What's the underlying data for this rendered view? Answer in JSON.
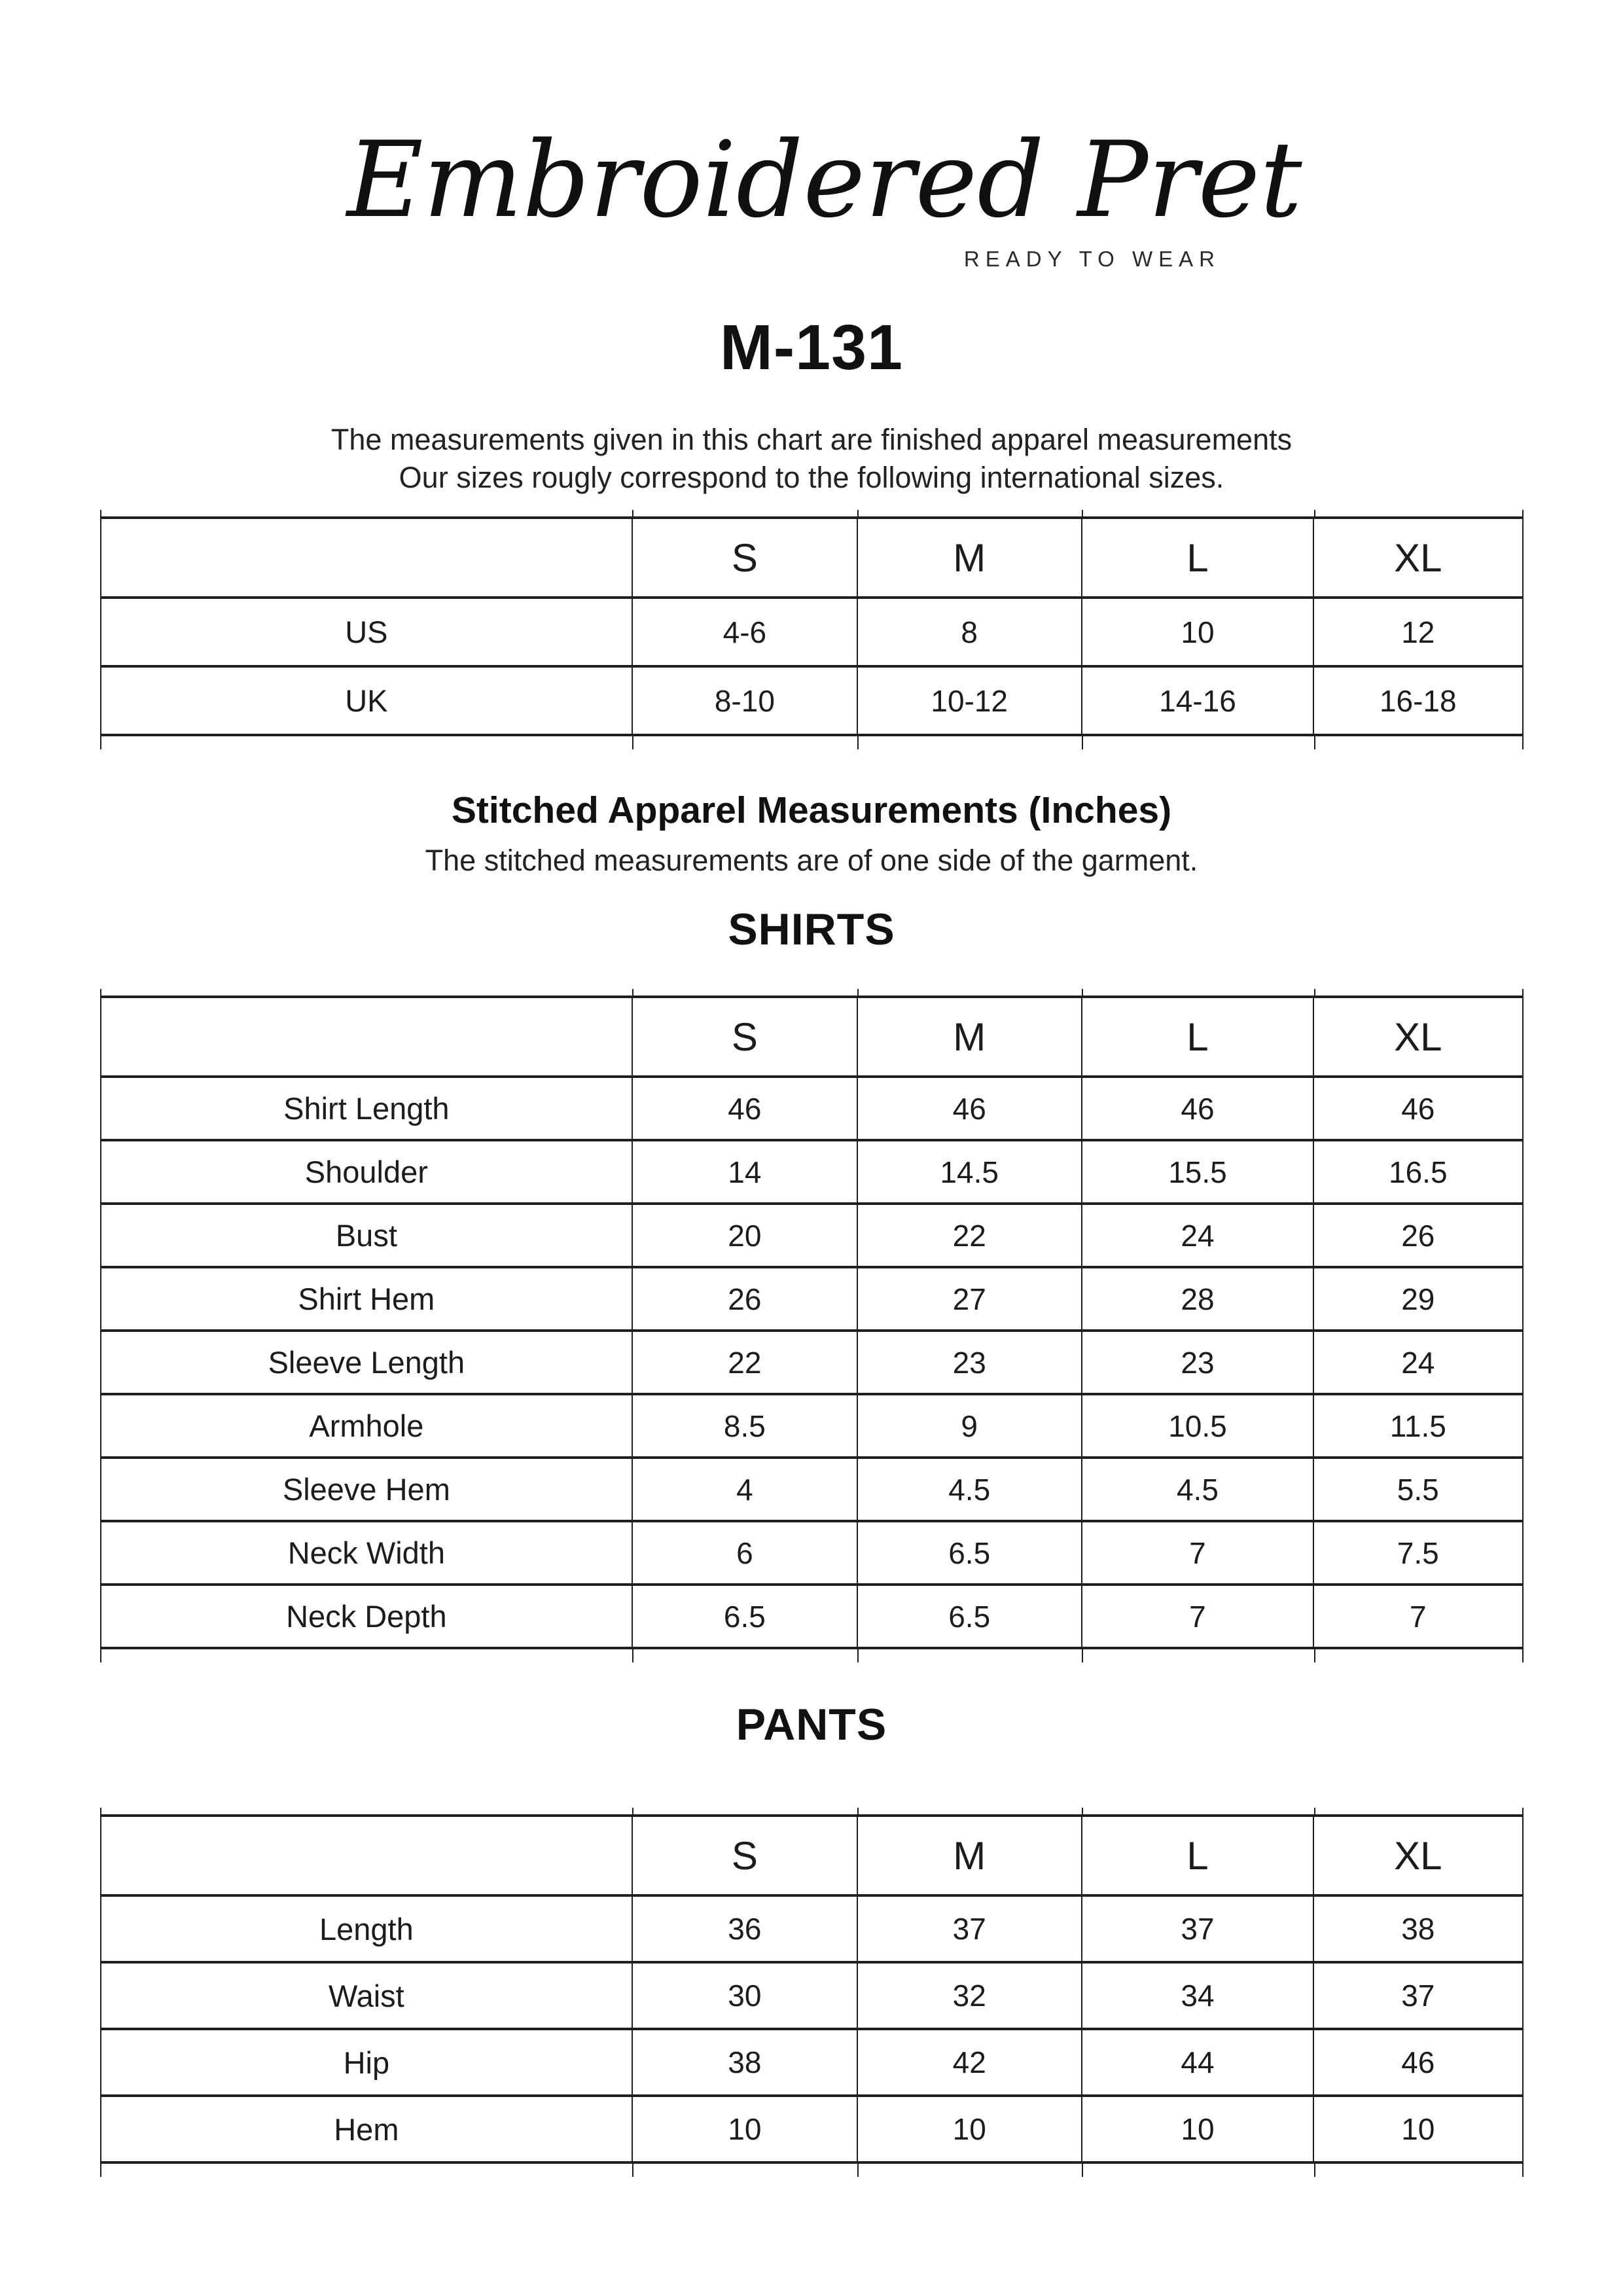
{
  "brand": {
    "wordmark": "Embroidered Pret",
    "tagline": "READY TO WEAR"
  },
  "product": {
    "code": "M-131"
  },
  "intro": {
    "line1": "The measurements given in this chart are finished apparel measurements",
    "line2": "Our sizes rougly correspond to the following international sizes."
  },
  "international": {
    "columns": [
      "S",
      "M",
      "L",
      "XL"
    ],
    "rows": [
      {
        "label": "US",
        "values": [
          "4-6",
          "8",
          "10",
          "12"
        ]
      },
      {
        "label": "UK",
        "values": [
          "8-10",
          "10-12",
          "14-16",
          "16-18"
        ]
      }
    ]
  },
  "stitched": {
    "title": "Stitched Apparel Measurements (Inches)",
    "subtitle": "The stitched measurements are of one side of the garment."
  },
  "shirts": {
    "heading": "SHIRTS",
    "columns": [
      "S",
      "M",
      "L",
      "XL"
    ],
    "rows": [
      {
        "label": "Shirt Length",
        "values": [
          "46",
          "46",
          "46",
          "46"
        ]
      },
      {
        "label": "Shoulder",
        "values": [
          "14",
          "14.5",
          "15.5",
          "16.5"
        ]
      },
      {
        "label": "Bust",
        "values": [
          "20",
          "22",
          "24",
          "26"
        ]
      },
      {
        "label": "Shirt Hem",
        "values": [
          "26",
          "27",
          "28",
          "29"
        ]
      },
      {
        "label": "Sleeve Length",
        "values": [
          "22",
          "23",
          "23",
          "24"
        ]
      },
      {
        "label": "Armhole",
        "values": [
          "8.5",
          "9",
          "10.5",
          "11.5"
        ]
      },
      {
        "label": "Sleeve Hem",
        "values": [
          "4",
          "4.5",
          "4.5",
          "5.5"
        ]
      },
      {
        "label": "Neck Width",
        "values": [
          "6",
          "6.5",
          "7",
          "7.5"
        ]
      },
      {
        "label": "Neck Depth",
        "values": [
          "6.5",
          "6.5",
          "7",
          "7"
        ]
      }
    ]
  },
  "pants": {
    "heading": "PANTS",
    "columns": [
      "S",
      "M",
      "L",
      "XL"
    ],
    "rows": [
      {
        "label": "Length",
        "values": [
          "36",
          "37",
          "37",
          "38"
        ]
      },
      {
        "label": "Waist",
        "values": [
          "30",
          "32",
          "34",
          "37"
        ]
      },
      {
        "label": "Hip",
        "values": [
          "38",
          "42",
          "44",
          "46"
        ]
      },
      {
        "label": "Hem",
        "values": [
          "10",
          "10",
          "10",
          "10"
        ]
      }
    ]
  }
}
